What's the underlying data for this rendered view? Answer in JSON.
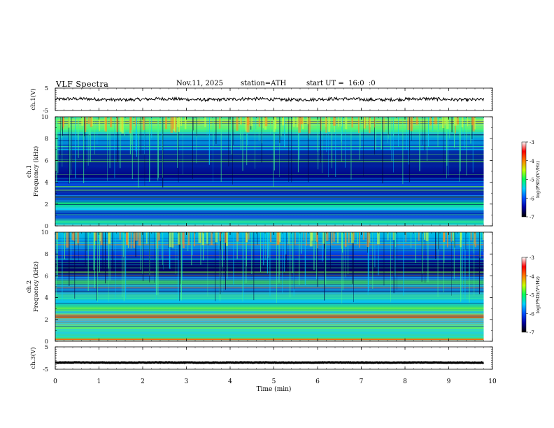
{
  "header": {
    "title": "VLF Spectra",
    "date": "Nov.11, 2025",
    "station": "station=ATH",
    "start": "start UT =  16:0  :0"
  },
  "chart_data": [
    {
      "type": "line",
      "name": "ch1-waveform",
      "ylabel": "ch.1(V)",
      "y_ticks": [
        "5",
        "-5"
      ],
      "ylim": [
        -5,
        5
      ],
      "xlim": [
        0,
        10
      ],
      "x_data_end": 9.8,
      "level": 0,
      "noise_amplitude": 0.7,
      "color": "#000000"
    },
    {
      "type": "heatmap",
      "name": "ch1-spectrogram",
      "ylabel": "ch.1\nFrequency (kHz)",
      "y_ticks": [
        "0",
        "2",
        "4",
        "6",
        "8",
        "10"
      ],
      "ylim": [
        0,
        10
      ],
      "xlim": [
        0,
        10
      ],
      "x_data_end": 9.8,
      "colorbar": {
        "label": "log(PSD)(V²/Hz)",
        "ticks": [
          "-3",
          "-4",
          "-5",
          "-6",
          "-7"
        ],
        "range": [
          -7,
          -3
        ],
        "colors": [
          "#000000",
          "#0000a0",
          "#0050ff",
          "#00d0ff",
          "#00ff60",
          "#c8ff00",
          "#ff8000",
          "#ff0000",
          "#ffffff"
        ]
      }
    },
    {
      "type": "heatmap",
      "name": "ch2-spectrogram",
      "ylabel": "ch.2\nFrequency (kHz)",
      "y_ticks": [
        "0",
        "2",
        "4",
        "6",
        "8",
        "10"
      ],
      "ylim": [
        0,
        10
      ],
      "xlim": [
        0,
        10
      ],
      "x_data_end": 9.8,
      "colorbar": {
        "label": "log(PSD)(V²/Hz)",
        "ticks": [
          "-3",
          "-4",
          "-5",
          "-6",
          "-7"
        ],
        "range": [
          -7,
          -3
        ],
        "colors": [
          "#000000",
          "#0000a0",
          "#0050ff",
          "#00d0ff",
          "#00ff60",
          "#c8ff00",
          "#ff8000",
          "#ff0000",
          "#ffffff"
        ]
      }
    },
    {
      "type": "line",
      "name": "ch3-waveform",
      "ylabel": "ch.3(V)",
      "y_ticks": [
        "5",
        "-5"
      ],
      "ylim": [
        -5,
        5
      ],
      "xlim": [
        0,
        10
      ],
      "x_data_end": 9.8,
      "level": -2,
      "noise_amplitude": 0.1,
      "color": "#000000"
    }
  ],
  "x_axis": {
    "label": "Time (min)",
    "ticks": [
      "0",
      "1",
      "2",
      "3",
      "4",
      "5",
      "6",
      "7",
      "8",
      "9",
      "10"
    ],
    "range": [
      0,
      10
    ]
  }
}
